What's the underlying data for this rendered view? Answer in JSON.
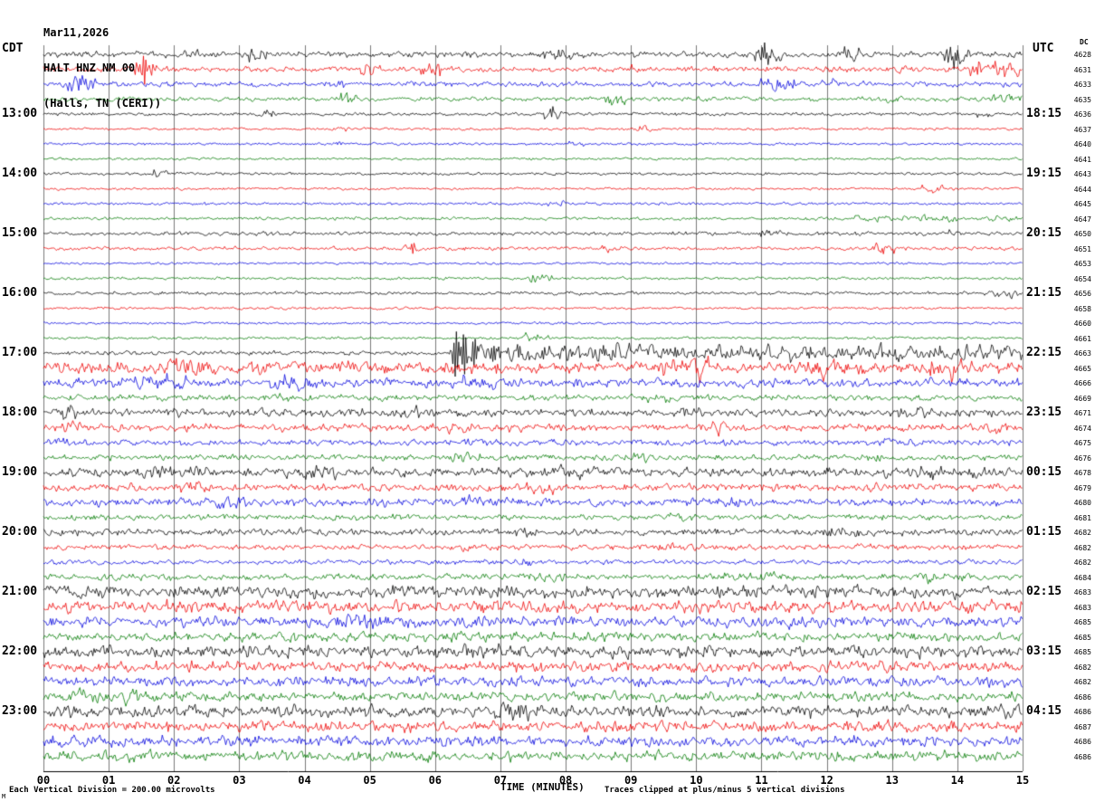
{
  "header": {
    "date": "Mar11,2026",
    "station": "HALT HNZ NM 00",
    "location": "(Halls, TN (CERI))",
    "left_tz": "CDT",
    "right_tz": "UTC",
    "dc_label": "DC"
  },
  "footer": {
    "scale_note": "Each Vertical Division =  200.00 microvolts",
    "xlabel": "TIME (MINUTES)",
    "clip_note": "Traces clipped at plus/minus 5 vertical divisions",
    "corner_mark": "M"
  },
  "chart_data": {
    "type": "line",
    "subtype": "webicorder-seismogram",
    "title": "Mar11,2026 HALT HNZ NM 00 (Halls, TN (CERI))",
    "xlabel": "TIME (MINUTES)",
    "x_range_minutes": [
      0,
      15
    ],
    "minutes_per_line": 15,
    "x_ticks": [
      "00",
      "01",
      "02",
      "03",
      "04",
      "05",
      "06",
      "07",
      "08",
      "09",
      "10",
      "11",
      "12",
      "13",
      "14",
      "15"
    ],
    "grid": "vertical-minute-lines",
    "left_axis_timezone": "CDT",
    "right_axis_timezone": "UTC",
    "first_row_start_cdt": "12:00",
    "rows_per_hour": 4,
    "hour_label_row_start": 4,
    "left_hour_labels": [
      "13:00",
      "14:00",
      "15:00",
      "16:00",
      "17:00",
      "18:00",
      "19:00",
      "20:00",
      "21:00",
      "22:00",
      "23:00"
    ],
    "right_hour_labels": [
      "18:15",
      "19:15",
      "20:15",
      "21:15",
      "22:15",
      "23:15",
      "00:15",
      "01:15",
      "02:15",
      "03:15",
      "04:15"
    ],
    "trace_colors_cycle": [
      "#000000",
      "#ee0000",
      "#0000dd",
      "#007a00"
    ],
    "grid_color": "#7a7a7a",
    "scale_microvolts_per_division": 200.0,
    "clip_divisions": 5,
    "rows": [
      {
        "dc": 4628,
        "a": 2.2,
        "b": [
          [
            2.1,
            2.4,
            2
          ],
          [
            3.15,
            3.45,
            3.5
          ],
          [
            7.6,
            8.1,
            3
          ],
          [
            10.9,
            11.3,
            4.5
          ],
          [
            12.2,
            12.5,
            3.5
          ],
          [
            13.8,
            14.25,
            5
          ]
        ],
        "s": [
          [
            11.05,
            7
          ],
          [
            13.95,
            9
          ]
        ]
      },
      {
        "dc": 4631,
        "a": 2.0,
        "b": [
          [
            1.4,
            1.75,
            6
          ],
          [
            4.85,
            5.2,
            4.5
          ],
          [
            5.75,
            6.1,
            4.5
          ],
          [
            9.0,
            9.25,
            2.5
          ],
          [
            14.2,
            14.95,
            4.5
          ]
        ],
        "s": [
          [
            1.55,
            10
          ]
        ]
      },
      {
        "dc": 4633,
        "a": 1.8,
        "b": [
          [
            0.35,
            0.8,
            5
          ],
          [
            4.3,
            4.6,
            2.5
          ],
          [
            10.95,
            11.5,
            3
          ],
          [
            11.9,
            12.15,
            2.5
          ]
        ],
        "s": [
          [
            0.55,
            8
          ]
        ]
      },
      {
        "dc": 4635,
        "a": 1.6,
        "b": [
          [
            4.5,
            4.85,
            2.5
          ],
          [
            8.6,
            8.95,
            2.5
          ],
          [
            12.9,
            13.2,
            2.5
          ],
          [
            14.5,
            15,
            2.5
          ]
        ],
        "s": []
      },
      {
        "dc": 4636,
        "a": 1.2,
        "b": [
          [
            3.3,
            3.55,
            2
          ],
          [
            7.65,
            7.95,
            3.5
          ],
          [
            14.3,
            14.55,
            1.8
          ]
        ],
        "s": [
          [
            7.78,
            5
          ]
        ]
      },
      {
        "dc": 4637,
        "a": 0.9,
        "b": [
          [
            4.4,
            4.7,
            1.2
          ],
          [
            9.0,
            9.3,
            1.2
          ]
        ],
        "s": []
      },
      {
        "dc": 4640,
        "a": 0.9,
        "b": [
          [
            4.3,
            4.6,
            1.2
          ],
          [
            8.0,
            8.3,
            1
          ]
        ],
        "s": []
      },
      {
        "dc": 4641,
        "a": 0.9,
        "b": [],
        "s": []
      },
      {
        "dc": 4643,
        "a": 1.0,
        "b": [
          [
            1.65,
            1.9,
            1.8
          ]
        ],
        "s": []
      },
      {
        "dc": 4644,
        "a": 0.9,
        "b": [
          [
            13.45,
            13.8,
            2.6
          ]
        ],
        "s": []
      },
      {
        "dc": 4645,
        "a": 1.0,
        "b": [
          [
            7.7,
            8.0,
            1.3
          ]
        ],
        "s": []
      },
      {
        "dc": 4647,
        "a": 1.1,
        "b": [
          [
            12.4,
            15,
            1.2
          ]
        ],
        "s": []
      },
      {
        "dc": 4650,
        "a": 1.4,
        "b": [
          [
            10.95,
            11.3,
            2.2
          ],
          [
            13.85,
            14.1,
            1.8
          ]
        ],
        "s": []
      },
      {
        "dc": 4651,
        "a": 1.3,
        "b": [
          [
            5.5,
            5.85,
            3.2
          ],
          [
            8.55,
            8.9,
            2.8
          ],
          [
            12.7,
            13.05,
            2.8
          ]
        ],
        "s": [
          [
            5.65,
            5
          ]
        ]
      },
      {
        "dc": 4653,
        "a": 0.9,
        "b": [],
        "s": []
      },
      {
        "dc": 4654,
        "a": 1.0,
        "b": [
          [
            7.45,
            7.8,
            2.8
          ]
        ],
        "s": []
      },
      {
        "dc": 4656,
        "a": 1.2,
        "b": [
          [
            14.4,
            15,
            1.8
          ]
        ],
        "s": []
      },
      {
        "dc": 4658,
        "a": 0.9,
        "b": [],
        "s": []
      },
      {
        "dc": 4660,
        "a": 0.9,
        "b": [],
        "s": []
      },
      {
        "dc": 4661,
        "a": 1.0,
        "b": [
          [
            7.35,
            7.75,
            2.6
          ]
        ],
        "s": []
      },
      {
        "dc": 4663,
        "a": 1.5,
        "b": [
          [
            6.2,
            15,
            4.8
          ]
        ],
        "s": [
          [
            6.32,
            24
          ],
          [
            6.45,
            19
          ],
          [
            6.6,
            13
          ],
          [
            6.9,
            9
          ],
          [
            7.3,
            7
          ]
        ]
      },
      {
        "dc": 4665,
        "a": 4.2,
        "b": [
          [
            1.9,
            2.5,
            3
          ],
          [
            9.4,
            10.2,
            3.5
          ],
          [
            11.7,
            12.3,
            3
          ],
          [
            13.4,
            14.3,
            3.5
          ]
        ],
        "s": []
      },
      {
        "dc": 4666,
        "a": 3.2,
        "b": [
          [
            1.4,
            2.2,
            3
          ],
          [
            3.4,
            4.2,
            3
          ],
          [
            6.4,
            7.0,
            2
          ]
        ],
        "s": []
      },
      {
        "dc": 4669,
        "a": 2.2,
        "b": [
          [
            3.4,
            3.8,
            1.5
          ],
          [
            9.2,
            9.6,
            1.5
          ]
        ],
        "s": []
      },
      {
        "dc": 4671,
        "a": 2.8,
        "b": [
          [
            0.15,
            0.5,
            2
          ],
          [
            5.4,
            5.8,
            2
          ],
          [
            9.7,
            10.1,
            2
          ],
          [
            13.1,
            13.5,
            2
          ]
        ],
        "s": []
      },
      {
        "dc": 4674,
        "a": 2.8,
        "b": [
          [
            0.25,
            0.65,
            2.5
          ],
          [
            6.2,
            6.6,
            2
          ],
          [
            10.1,
            10.5,
            2
          ],
          [
            14.4,
            14.8,
            2
          ]
        ],
        "s": []
      },
      {
        "dc": 4675,
        "a": 2.1,
        "b": [
          [
            0.05,
            0.4,
            2.5
          ],
          [
            6.4,
            6.8,
            1.5
          ],
          [
            12.8,
            13.3,
            2
          ]
        ],
        "s": []
      },
      {
        "dc": 4676,
        "a": 2.1,
        "b": [
          [
            6.2,
            6.7,
            1.5
          ],
          [
            8.9,
            9.4,
            1.5
          ],
          [
            12.4,
            12.9,
            1.5
          ]
        ],
        "s": []
      },
      {
        "dc": 4678,
        "a": 3.4,
        "b": [
          [
            1.4,
            2.5,
            1.8
          ],
          [
            3.9,
            4.5,
            1.8
          ],
          [
            7.9,
            8.5,
            1.8
          ],
          [
            13.2,
            13.8,
            1.8
          ]
        ],
        "s": []
      },
      {
        "dc": 4679,
        "a": 2.9,
        "b": [
          [
            2.1,
            2.6,
            1.5
          ],
          [
            7.4,
            8.0,
            1.5
          ]
        ],
        "s": []
      },
      {
        "dc": 4680,
        "a": 2.9,
        "b": [
          [
            2.4,
            3.2,
            1.8
          ],
          [
            6.4,
            7.0,
            1.5
          ],
          [
            10.4,
            11.0,
            1.5
          ]
        ],
        "s": []
      },
      {
        "dc": 4681,
        "a": 2.1,
        "b": [
          [
            9.6,
            10.0,
            1.5
          ]
        ],
        "s": []
      },
      {
        "dc": 4682,
        "a": 2.4,
        "b": [
          [
            6.9,
            7.5,
            1.2
          ],
          [
            11.9,
            12.5,
            1.6
          ]
        ],
        "s": []
      },
      {
        "dc": 4682,
        "a": 2.0,
        "b": [
          [
            6.4,
            7.0,
            1.2
          ],
          [
            9.4,
            10.0,
            1.2
          ]
        ],
        "s": []
      },
      {
        "dc": 4682,
        "a": 1.7,
        "b": [
          [
            6.9,
            7.5,
            1
          ]
        ],
        "s": []
      },
      {
        "dc": 4684,
        "a": 2.2,
        "b": [
          [
            7.4,
            8.0,
            1.4
          ],
          [
            10.4,
            11.2,
            1.8
          ],
          [
            13.4,
            14.2,
            1.8
          ]
        ],
        "s": []
      },
      {
        "dc": 4683,
        "a": 4.4,
        "b": [],
        "s": []
      },
      {
        "dc": 4683,
        "a": 4.4,
        "b": [],
        "s": []
      },
      {
        "dc": 4685,
        "a": 3.9,
        "b": [
          [
            4.4,
            5.5,
            1.5
          ]
        ],
        "s": []
      },
      {
        "dc": 4685,
        "a": 3.4,
        "b": [],
        "s": []
      },
      {
        "dc": 4685,
        "a": 4.4,
        "b": [
          [
            6.4,
            7.0,
            2
          ]
        ],
        "s": []
      },
      {
        "dc": 4682,
        "a": 3.9,
        "b": [],
        "s": []
      },
      {
        "dc": 4682,
        "a": 3.7,
        "b": [],
        "s": []
      },
      {
        "dc": 4686,
        "a": 3.4,
        "b": [
          [
            0.4,
            1.5,
            1.5
          ]
        ],
        "s": []
      },
      {
        "dc": 4686,
        "a": 4.4,
        "b": [
          [
            6.9,
            7.5,
            2.5
          ]
        ],
        "s": []
      },
      {
        "dc": 4687,
        "a": 4.1,
        "b": [],
        "s": []
      },
      {
        "dc": 4686,
        "a": 3.9,
        "b": [],
        "s": []
      },
      {
        "dc": 4686,
        "a": 3.7,
        "b": [],
        "s": []
      }
    ]
  }
}
